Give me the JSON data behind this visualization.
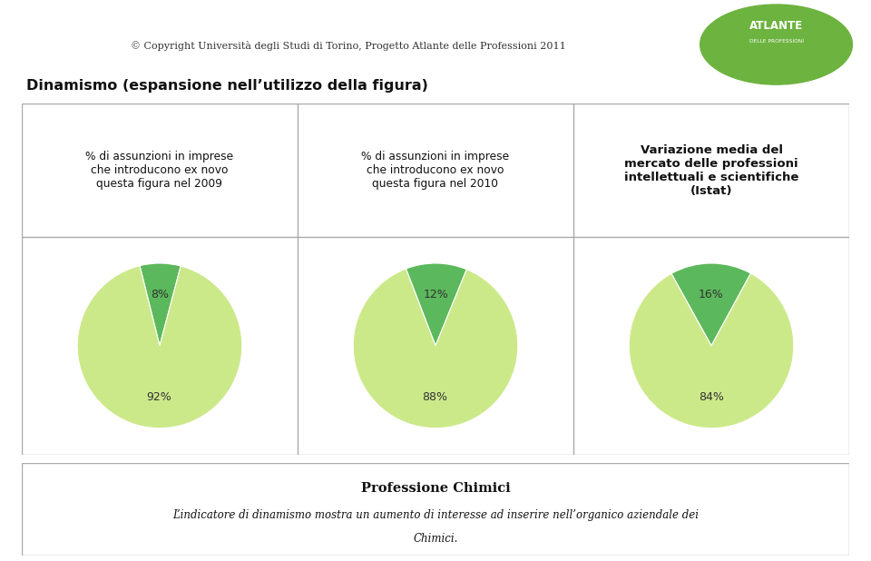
{
  "title_copyright": "© Copyright Università degli Studi di Torino, Progetto Atlante delle Professioni 2011",
  "main_title": "Dinamismo (espansione nell’utilizzo della figura)",
  "col_headers": [
    "% di assunzioni in imprese\nche introducono ex novo\nquesta figura nel 2009",
    "% di assunzioni in imprese\nche introducono ex novo\nquesta figura nel 2010",
    "Variazione media del\nmercato delle professioni\nintellettuali e scientifiche\n(Istat)"
  ],
  "pie_data": [
    [
      8,
      92
    ],
    [
      12,
      88
    ],
    [
      16,
      84
    ]
  ],
  "pie_labels": [
    [
      "8%",
      "92%"
    ],
    [
      "12%",
      "88%"
    ],
    [
      "16%",
      "84%"
    ]
  ],
  "pie_colors_small": [
    "#5cb85c",
    "#5cb85c",
    "#5cb85c"
  ],
  "pie_colors_large": [
    "#cce98a",
    "#cce98a",
    "#cce98a"
  ],
  "footer_title": "Professione Chimici",
  "footer_line1": "L’indicatore di dinamismo mostra un aumento di interesse ad inserire nell’organico aziendale dei",
  "footer_line2": "Chimici.",
  "bg_color": "#ffffff",
  "table_line_color": "#aaaaaa",
  "pie_startangles": [
    104,
    111,
    119
  ]
}
